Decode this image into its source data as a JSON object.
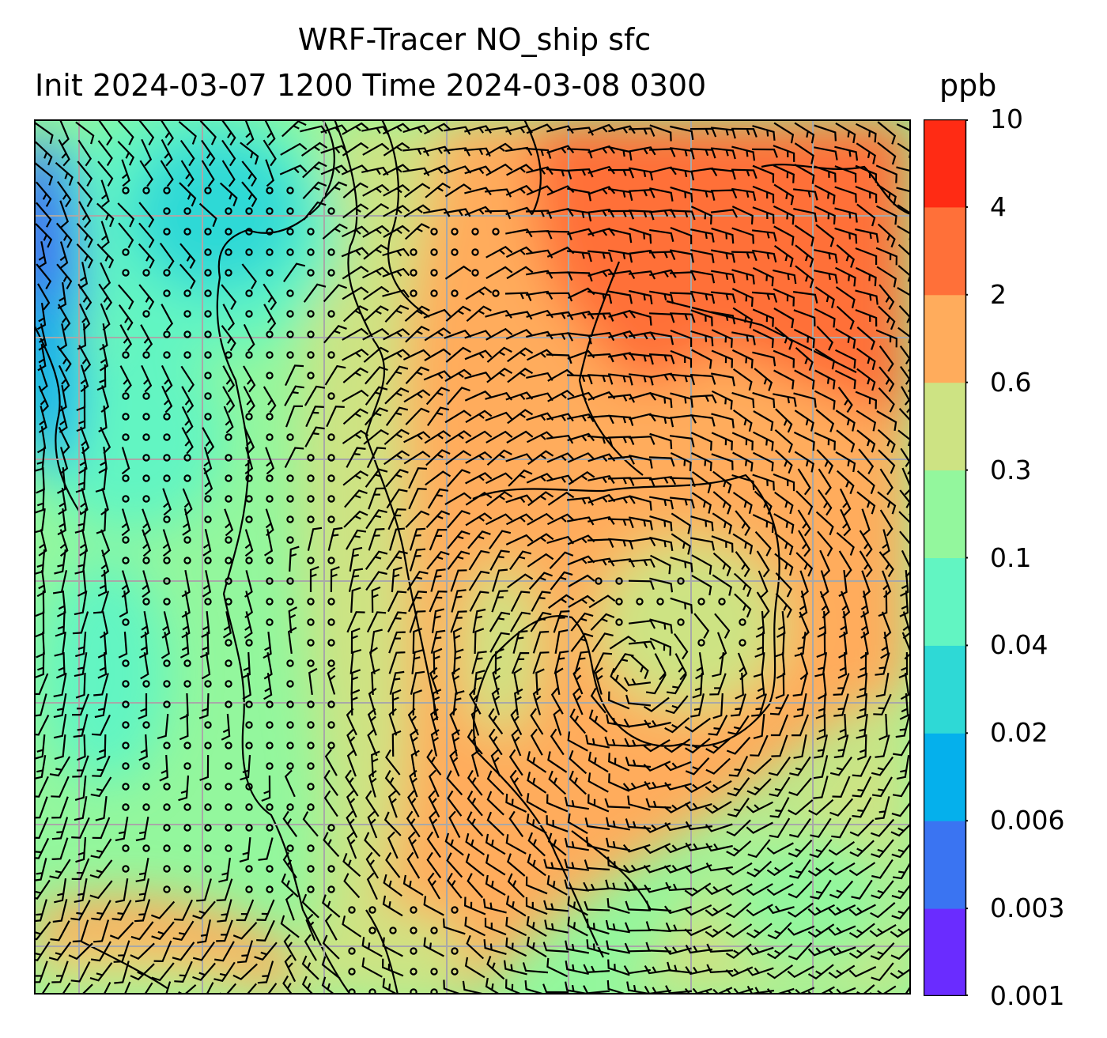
{
  "title": {
    "line1": "WRF-Tracer NO_ship sfc",
    "line2": "Init 2024-03-07 1200 Time 2024-03-08 0300",
    "units": "ppb"
  },
  "colorbar": {
    "levels": [
      "0.001",
      "0.003",
      "0.006",
      "0.02",
      "0.04",
      "0.1",
      "0.3",
      "0.6",
      "2",
      "4",
      "10"
    ],
    "colors": [
      "#6a2cff",
      "#3a74f2",
      "#05b0ec",
      "#2ed9d6",
      "#62f5c2",
      "#93f79d",
      "#cde383",
      "#ffac5c",
      "#ff7039",
      "#ff2b14"
    ]
  },
  "map": {
    "field": "NO_ship surface concentration with 10 m wind barbs",
    "gridlines": true
  }
}
